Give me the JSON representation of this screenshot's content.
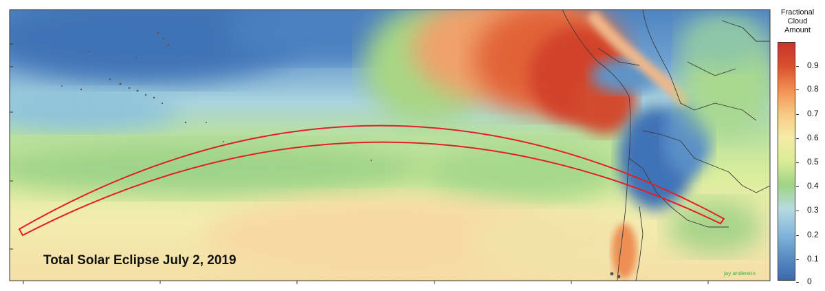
{
  "map": {
    "title": "Total Solar Eclipse July 2, 2019",
    "credit": "jay anderson",
    "path_color": "#e21f26"
  },
  "legend": {
    "title_lines": [
      "Fractional",
      "Cloud",
      "Amount"
    ],
    "ticks": [
      "0.9",
      "0.8",
      "0.7",
      "0.6",
      "0.5",
      "0.4",
      "0.3",
      "0.2",
      "0.1",
      "0"
    ],
    "colors": {
      "clear": "#3a69ad",
      "low": "#86b9dc",
      "mid_low": "#9fd486",
      "mid": "#f6eba5",
      "mid_high": "#f19154",
      "cloudy": "#c8342b"
    }
  }
}
